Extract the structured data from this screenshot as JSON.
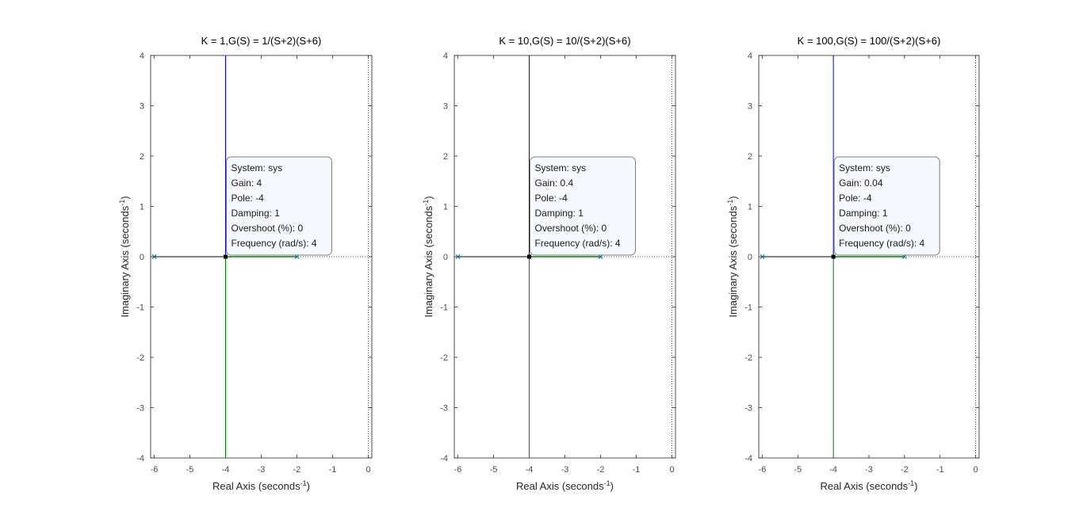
{
  "axis_labels": {
    "x": "Real Axis (seconds",
    "y": "Imaginary Axis (seconds",
    "superscript": "-1"
  },
  "colors": {
    "branch_up": "#0000ff",
    "branch_down": "#008000",
    "pole_marker": "#0072bd",
    "neg_axis_segment": "#000000",
    "datatip_fill": "#f8f8ff",
    "datatip_border": "#7f7f7f"
  },
  "chart_data": [
    {
      "type": "scatter",
      "title": "K = 1,G(S) = 1/(S+2)(S+6)",
      "xlabel": "Real Axis (seconds-1)",
      "ylabel": "Imaginary Axis (seconds-1)",
      "xlim": [
        -6.1,
        0.1
      ],
      "ylim": [
        -4,
        4
      ],
      "xticks": [
        -6,
        -5,
        -4,
        -3,
        -2,
        -1,
        0
      ],
      "yticks": [
        -4,
        -3,
        -2,
        -1,
        0,
        1,
        2,
        3,
        4
      ],
      "grid": false,
      "open_loop_poles": [
        [
          -6,
          0
        ],
        [
          -2,
          0
        ]
      ],
      "branches": [
        {
          "name": "branch 1",
          "points": [
            [
              -6,
              0
            ],
            [
              -4,
              0
            ],
            [
              -4,
              4
            ]
          ]
        },
        {
          "name": "branch 2",
          "points": [
            [
              -2,
              0
            ],
            [
              -4,
              0
            ],
            [
              -4,
              -4
            ]
          ]
        }
      ],
      "selected_point": [
        -4,
        0
      ],
      "datatip": [
        "System: sys",
        "Gain: 4",
        "Pole: -4",
        "Damping: 1",
        "Overshoot (%): 0",
        "Frequency (rad/s): 4"
      ]
    },
    {
      "type": "scatter",
      "title": "K = 10,G(S) = 10/(S+2)(S+6)",
      "xlabel": "Real Axis (seconds-1)",
      "ylabel": "Imaginary Axis (seconds-1)",
      "xlim": [
        -6.1,
        0.1
      ],
      "ylim": [
        -4,
        4
      ],
      "xticks": [
        -6,
        -5,
        -4,
        -3,
        -2,
        -1,
        0
      ],
      "yticks": [
        -4,
        -3,
        -2,
        -1,
        0,
        1,
        2,
        3,
        4
      ],
      "grid": false,
      "open_loop_poles": [
        [
          -6,
          0
        ],
        [
          -2,
          0
        ]
      ],
      "branches": [
        {
          "name": "branch 1",
          "points": [
            [
              -6,
              0
            ],
            [
              -4,
              0
            ],
            [
              -4,
              4
            ]
          ]
        },
        {
          "name": "branch 2",
          "points": [
            [
              -2,
              0
            ],
            [
              -4,
              0
            ],
            [
              -4,
              -4
            ]
          ]
        }
      ],
      "selected_point": [
        -4,
        0
      ],
      "datatip": [
        "System: sys",
        "Gain: 0.4",
        "Pole: -4",
        "Damping: 1",
        "Overshoot (%): 0",
        "Frequency (rad/s): 4"
      ]
    },
    {
      "type": "scatter",
      "title": "K = 100,G(S) = 100/(S+2)(S+6)",
      "xlabel": "Real Axis (seconds-1)",
      "ylabel": "Imaginary Axis (seconds-1)",
      "xlim": [
        -6.1,
        0.1
      ],
      "ylim": [
        -4,
        4
      ],
      "xticks": [
        -6,
        -5,
        -4,
        -3,
        -2,
        -1,
        0
      ],
      "yticks": [
        -4,
        -3,
        -2,
        -1,
        0,
        1,
        2,
        3,
        4
      ],
      "grid": false,
      "open_loop_poles": [
        [
          -6,
          0
        ],
        [
          -2,
          0
        ]
      ],
      "branches": [
        {
          "name": "branch 1",
          "points": [
            [
              -6,
              0
            ],
            [
              -4,
              0
            ],
            [
              -4,
              4
            ]
          ]
        },
        {
          "name": "branch 2",
          "points": [
            [
              -2,
              0
            ],
            [
              -4,
              0
            ],
            [
              -4,
              -4
            ]
          ]
        }
      ],
      "selected_point": [
        -4,
        0
      ],
      "datatip": [
        "System: sys",
        "Gain: 0.04",
        "Pole: -4",
        "Damping: 1",
        "Overshoot (%): 0",
        "Frequency (rad/s): 4"
      ]
    }
  ]
}
